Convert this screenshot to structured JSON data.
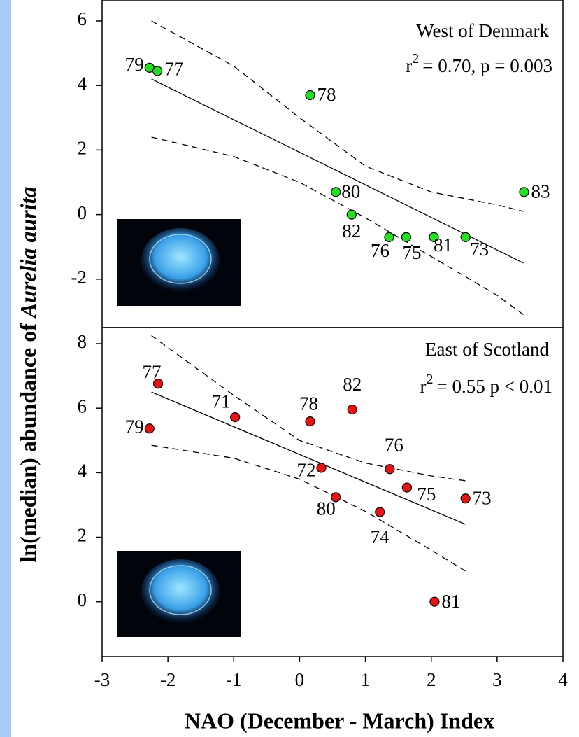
{
  "chart_data": [
    {
      "type": "scatter",
      "annotation": "West of Denmark",
      "stat_text": [
        "r",
        "2",
        "= 0.70, p = 0.003"
      ],
      "xlim": [
        -3,
        4
      ],
      "ylim": [
        -3.5,
        6.65
      ],
      "yticks": [
        -2,
        0,
        2,
        4,
        6
      ],
      "series": [
        {
          "color": "#22e022",
          "x": [
            -2.28,
            -2.16,
            0.16,
            0.55,
            0.79,
            1.36,
            1.62,
            2.04,
            2.52,
            3.41
          ],
          "values": [
            4.55,
            4.45,
            3.7,
            0.7,
            0.0,
            -0.7,
            -0.7,
            -0.7,
            -0.7,
            0.7
          ],
          "labels": [
            "79",
            "77",
            "78",
            "80",
            "82",
            "76",
            "75",
            "81",
            "73",
            "83"
          ]
        }
      ],
      "fit": {
        "x": [
          -2.25,
          3.4
        ],
        "y": [
          4.2,
          -1.5
        ]
      },
      "ci_upper": {
        "x": [
          -2.25,
          -1,
          0,
          1,
          2,
          3,
          3.4
        ],
        "y": [
          6.0,
          4.6,
          3.0,
          1.5,
          0.7,
          0.3,
          0.1
        ]
      },
      "ci_lower": {
        "x": [
          -2.25,
          -1,
          0,
          1,
          2,
          3,
          3.4
        ],
        "y": [
          2.4,
          1.8,
          1.0,
          -0.1,
          -1.3,
          -2.5,
          -3.1
        ]
      }
    },
    {
      "type": "scatter",
      "annotation": "East of Scotland",
      "stat_text": [
        "r",
        "2",
        "= 0.55  p < 0.01"
      ],
      "xlim": [
        -3,
        4
      ],
      "xticks": [
        -3,
        -2,
        -1,
        0,
        1,
        2,
        3,
        4
      ],
      "ylim": [
        -1.7,
        8.5
      ],
      "yticks": [
        0,
        2,
        4,
        6,
        8
      ],
      "xlabel": "NAO (December - March) Index",
      "series": [
        {
          "color": "#e81414",
          "x": [
            -2.15,
            -2.28,
            -0.98,
            0.16,
            0.8,
            0.33,
            0.55,
            1.22,
            1.37,
            1.63,
            2.52,
            2.05
          ],
          "values": [
            6.76,
            5.37,
            5.72,
            5.59,
            5.96,
            4.15,
            3.24,
            2.78,
            4.11,
            3.54,
            3.2,
            0.0
          ],
          "labels": [
            "77",
            "79",
            "71",
            "78",
            "82",
            "72",
            "80",
            "74",
            "76",
            "75",
            "73",
            "81"
          ]
        }
      ],
      "fit": {
        "x": [
          -2.25,
          2.52
        ],
        "y": [
          6.5,
          2.4
        ]
      },
      "ci_upper": {
        "x": [
          -2.25,
          -1,
          0,
          1,
          2,
          2.52
        ],
        "y": [
          8.25,
          6.4,
          5.0,
          4.3,
          3.9,
          3.75
        ]
      },
      "ci_lower": {
        "x": [
          -2.25,
          -1,
          0,
          1,
          2,
          2.52
        ],
        "y": [
          4.85,
          4.45,
          3.8,
          2.8,
          1.6,
          0.95
        ]
      }
    }
  ],
  "ylabel": [
    "ln(median) abundance of",
    "Aurelia aurita"
  ]
}
